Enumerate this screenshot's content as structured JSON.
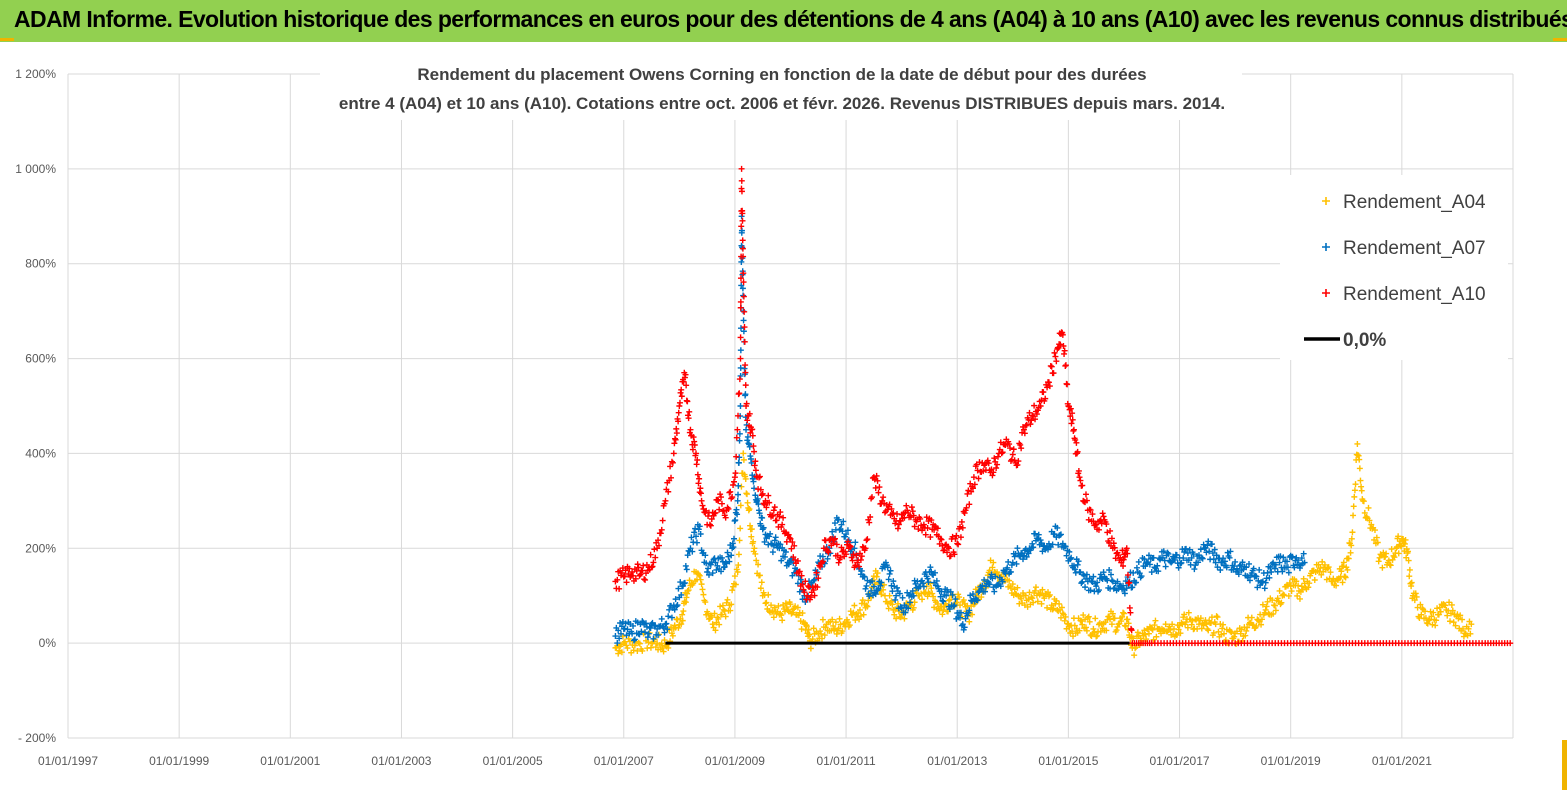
{
  "banner": {
    "text": "ADAM Informe. Evolution historique des performances en euros pour des détentions de 4 ans (A04) à 10 ans (A10) avec les revenus connus distribués"
  },
  "colors": {
    "banner_bg": "#92d050",
    "corner": "#f0b400",
    "A04": "#ffc000",
    "A07": "#0070c0",
    "A10": "#ff0000",
    "zero": "#000000",
    "grid": "#d9d9d9"
  },
  "chart_data": {
    "type": "scatter",
    "title_line1": "Rendement du placement Owens Corning en fonction de la date de début pour des durées",
    "title_line2": "entre 4 (A04) et 10 ans (A10).  Cotations entre oct. 2006 et févr. 2026. Revenus DISTRIBUES  depuis mars. 2014.",
    "xlim": [
      1997.0,
      2023.0
    ],
    "ylim": [
      -200,
      1200
    ],
    "grid": true,
    "legend_position": "top-right",
    "x_ticks": [
      {
        "value": 1997,
        "label": "01/01/1997"
      },
      {
        "value": 1999,
        "label": "01/01/1999"
      },
      {
        "value": 2001,
        "label": "01/01/2001"
      },
      {
        "value": 2003,
        "label": "01/01/2003"
      },
      {
        "value": 2005,
        "label": "01/01/2005"
      },
      {
        "value": 2007,
        "label": "01/01/2007"
      },
      {
        "value": 2009,
        "label": "01/01/2009"
      },
      {
        "value": 2011,
        "label": "01/01/2011"
      },
      {
        "value": 2013,
        "label": "01/01/2013"
      },
      {
        "value": 2015,
        "label": "01/01/2015"
      },
      {
        "value": 2017,
        "label": "01/01/2017"
      },
      {
        "value": 2019,
        "label": "01/01/2019"
      },
      {
        "value": 2021,
        "label": "01/01/2021"
      }
    ],
    "y_ticks": [
      {
        "value": 1200,
        "label": "1 200%"
      },
      {
        "value": 1000,
        "label": "1 000%"
      },
      {
        "value": 800,
        "label": "800%"
      },
      {
        "value": 600,
        "label": "600%"
      },
      {
        "value": 400,
        "label": "400%"
      },
      {
        "value": 200,
        "label": "200%"
      },
      {
        "value": 0,
        "label": "0%"
      },
      {
        "value": -200,
        "label": "- 200%"
      }
    ],
    "series": [
      {
        "name": "Rendement_A04",
        "color": "#ffc000",
        "points": [
          [
            2006.85,
            -10
          ],
          [
            2007.0,
            0
          ],
          [
            2007.2,
            -5
          ],
          [
            2007.4,
            5
          ],
          [
            2007.6,
            0
          ],
          [
            2007.75,
            -5
          ],
          [
            2007.9,
            30
          ],
          [
            2008.05,
            60
          ],
          [
            2008.15,
            110
          ],
          [
            2008.3,
            150
          ],
          [
            2008.45,
            90
          ],
          [
            2008.6,
            40
          ],
          [
            2008.75,
            60
          ],
          [
            2008.9,
            80
          ],
          [
            2009.05,
            150
          ],
          [
            2009.15,
            400
          ],
          [
            2009.25,
            280
          ],
          [
            2009.35,
            200
          ],
          [
            2009.5,
            100
          ],
          [
            2009.65,
            80
          ],
          [
            2009.8,
            60
          ],
          [
            2009.95,
            70
          ],
          [
            2010.1,
            60
          ],
          [
            2010.25,
            40
          ],
          [
            2010.35,
            5
          ],
          [
            2010.5,
            20
          ],
          [
            2010.65,
            40
          ],
          [
            2010.8,
            30
          ],
          [
            2010.95,
            40
          ],
          [
            2011.1,
            60
          ],
          [
            2011.25,
            70
          ],
          [
            2011.4,
            90
          ],
          [
            2011.55,
            140
          ],
          [
            2011.7,
            100
          ],
          [
            2011.85,
            70
          ],
          [
            2012.0,
            60
          ],
          [
            2012.15,
            80
          ],
          [
            2012.3,
            100
          ],
          [
            2012.45,
            120
          ],
          [
            2012.6,
            90
          ],
          [
            2012.75,
            70
          ],
          [
            2012.9,
            100
          ],
          [
            2013.05,
            80
          ],
          [
            2013.2,
            60
          ],
          [
            2013.35,
            100
          ],
          [
            2013.5,
            130
          ],
          [
            2013.65,
            170
          ],
          [
            2013.8,
            140
          ],
          [
            2013.95,
            120
          ],
          [
            2014.1,
            100
          ],
          [
            2014.25,
            90
          ],
          [
            2014.4,
            110
          ],
          [
            2014.55,
            100
          ],
          [
            2014.7,
            80
          ],
          [
            2014.85,
            70
          ],
          [
            2015.0,
            40
          ],
          [
            2015.15,
            30
          ],
          [
            2015.3,
            50
          ],
          [
            2015.45,
            30
          ],
          [
            2015.6,
            40
          ],
          [
            2015.75,
            50
          ],
          [
            2015.9,
            40
          ],
          [
            2016.05,
            50
          ],
          [
            2016.15,
            -10
          ],
          [
            2016.3,
            10
          ],
          [
            2016.45,
            20
          ],
          [
            2016.6,
            30
          ],
          [
            2016.75,
            40
          ],
          [
            2016.9,
            30
          ],
          [
            2017.05,
            40
          ],
          [
            2017.2,
            50
          ],
          [
            2017.35,
            40
          ],
          [
            2017.5,
            30
          ],
          [
            2017.65,
            40
          ],
          [
            2017.8,
            20
          ],
          [
            2017.95,
            10
          ],
          [
            2018.1,
            20
          ],
          [
            2018.25,
            40
          ],
          [
            2018.4,
            50
          ],
          [
            2018.55,
            70
          ],
          [
            2018.7,
            80
          ],
          [
            2018.85,
            100
          ],
          [
            2019.0,
            120
          ],
          [
            2019.15,
            110
          ],
          [
            2019.3,
            130
          ],
          [
            2019.45,
            150
          ],
          [
            2019.6,
            160
          ],
          [
            2019.75,
            130
          ],
          [
            2019.9,
            140
          ],
          [
            2020.0,
            160
          ],
          [
            2020.1,
            220
          ],
          [
            2020.2,
            420
          ],
          [
            2020.3,
            300
          ],
          [
            2020.45,
            250
          ],
          [
            2020.6,
            180
          ],
          [
            2020.75,
            170
          ],
          [
            2020.9,
            200
          ],
          [
            2021.0,
            220
          ],
          [
            2021.1,
            190
          ],
          [
            2021.2,
            100
          ],
          [
            2021.35,
            60
          ],
          [
            2021.5,
            50
          ],
          [
            2021.65,
            60
          ],
          [
            2021.8,
            70
          ],
          [
            2021.95,
            60
          ],
          [
            2022.1,
            30
          ],
          [
            2022.25,
            40
          ]
        ]
      },
      {
        "name": "Rendement_A07",
        "color": "#0070c0",
        "points": [
          [
            2006.85,
            15
          ],
          [
            2007.0,
            30
          ],
          [
            2007.15,
            20
          ],
          [
            2007.3,
            40
          ],
          [
            2007.45,
            20
          ],
          [
            2007.6,
            30
          ],
          [
            2007.75,
            40
          ],
          [
            2007.9,
            80
          ],
          [
            2008.05,
            120
          ],
          [
            2008.2,
            200
          ],
          [
            2008.35,
            240
          ],
          [
            2008.5,
            150
          ],
          [
            2008.65,
            170
          ],
          [
            2008.8,
            160
          ],
          [
            2008.95,
            200
          ],
          [
            2009.05,
            300
          ],
          [
            2009.1,
            500
          ],
          [
            2009.12,
            900
          ],
          [
            2009.15,
            700
          ],
          [
            2009.2,
            450
          ],
          [
            2009.3,
            380
          ],
          [
            2009.4,
            300
          ],
          [
            2009.5,
            240
          ],
          [
            2009.65,
            210
          ],
          [
            2009.8,
            200
          ],
          [
            2009.95,
            170
          ],
          [
            2010.1,
            150
          ],
          [
            2010.25,
            100
          ],
          [
            2010.4,
            120
          ],
          [
            2010.55,
            170
          ],
          [
            2010.7,
            200
          ],
          [
            2010.85,
            260
          ],
          [
            2011.0,
            230
          ],
          [
            2011.15,
            200
          ],
          [
            2011.3,
            140
          ],
          [
            2011.45,
            110
          ],
          [
            2011.6,
            130
          ],
          [
            2011.75,
            160
          ],
          [
            2011.9,
            100
          ],
          [
            2012.05,
            80
          ],
          [
            2012.2,
            110
          ],
          [
            2012.35,
            130
          ],
          [
            2012.5,
            150
          ],
          [
            2012.65,
            120
          ],
          [
            2012.8,
            100
          ],
          [
            2012.95,
            80
          ],
          [
            2013.1,
            40
          ],
          [
            2013.25,
            90
          ],
          [
            2013.4,
            110
          ],
          [
            2013.55,
            130
          ],
          [
            2013.7,
            120
          ],
          [
            2013.85,
            150
          ],
          [
            2014.0,
            170
          ],
          [
            2014.15,
            190
          ],
          [
            2014.3,
            200
          ],
          [
            2014.45,
            220
          ],
          [
            2014.6,
            200
          ],
          [
            2014.75,
            230
          ],
          [
            2014.9,
            210
          ],
          [
            2015.05,
            180
          ],
          [
            2015.2,
            150
          ],
          [
            2015.35,
            130
          ],
          [
            2015.5,
            120
          ],
          [
            2015.65,
            140
          ],
          [
            2015.8,
            130
          ],
          [
            2015.95,
            120
          ],
          [
            2016.1,
            130
          ],
          [
            2016.25,
            150
          ],
          [
            2016.4,
            170
          ],
          [
            2016.55,
            160
          ],
          [
            2016.7,
            180
          ],
          [
            2016.85,
            170
          ],
          [
            2017.0,
            180
          ],
          [
            2017.15,
            190
          ],
          [
            2017.3,
            170
          ],
          [
            2017.45,
            200
          ],
          [
            2017.6,
            190
          ],
          [
            2017.75,
            170
          ],
          [
            2017.9,
            180
          ],
          [
            2018.05,
            150
          ],
          [
            2018.2,
            160
          ],
          [
            2018.35,
            140
          ],
          [
            2018.5,
            130
          ],
          [
            2018.65,
            150
          ],
          [
            2018.8,
            170
          ],
          [
            2018.95,
            160
          ],
          [
            2019.1,
            180
          ],
          [
            2019.25,
            170
          ]
        ]
      },
      {
        "name": "Rendement_A10",
        "color": "#ff0000",
        "points": [
          [
            2006.85,
            130
          ],
          [
            2007.0,
            140
          ],
          [
            2007.15,
            150
          ],
          [
            2007.3,
            145
          ],
          [
            2007.45,
            160
          ],
          [
            2007.6,
            200
          ],
          [
            2007.75,
            300
          ],
          [
            2007.9,
            400
          ],
          [
            2008.0,
            500
          ],
          [
            2008.1,
            560
          ],
          [
            2008.2,
            450
          ],
          [
            2008.3,
            400
          ],
          [
            2008.4,
            300
          ],
          [
            2008.55,
            250
          ],
          [
            2008.7,
            300
          ],
          [
            2008.85,
            280
          ],
          [
            2009.0,
            350
          ],
          [
            2009.1,
            600
          ],
          [
            2009.12,
            1000
          ],
          [
            2009.15,
            780
          ],
          [
            2009.2,
            500
          ],
          [
            2009.3,
            450
          ],
          [
            2009.4,
            350
          ],
          [
            2009.55,
            300
          ],
          [
            2009.7,
            280
          ],
          [
            2009.85,
            250
          ],
          [
            2010.0,
            220
          ],
          [
            2010.15,
            150
          ],
          [
            2010.3,
            100
          ],
          [
            2010.45,
            120
          ],
          [
            2010.6,
            200
          ],
          [
            2010.75,
            220
          ],
          [
            2010.9,
            180
          ],
          [
            2011.05,
            200
          ],
          [
            2011.2,
            170
          ],
          [
            2011.35,
            200
          ],
          [
            2011.5,
            350
          ],
          [
            2011.65,
            300
          ],
          [
            2011.8,
            270
          ],
          [
            2011.95,
            250
          ],
          [
            2012.1,
            280
          ],
          [
            2012.25,
            260
          ],
          [
            2012.4,
            250
          ],
          [
            2012.55,
            240
          ],
          [
            2012.7,
            220
          ],
          [
            2012.85,
            200
          ],
          [
            2013.0,
            210
          ],
          [
            2013.15,
            280
          ],
          [
            2013.3,
            350
          ],
          [
            2013.45,
            380
          ],
          [
            2013.6,
            360
          ],
          [
            2013.75,
            400
          ],
          [
            2013.9,
            420
          ],
          [
            2014.05,
            380
          ],
          [
            2014.2,
            450
          ],
          [
            2014.35,
            480
          ],
          [
            2014.5,
            500
          ],
          [
            2014.65,
            550
          ],
          [
            2014.8,
            620
          ],
          [
            2014.9,
            650
          ],
          [
            2015.0,
            500
          ],
          [
            2015.1,
            450
          ],
          [
            2015.2,
            350
          ],
          [
            2015.35,
            280
          ],
          [
            2015.5,
            250
          ],
          [
            2015.65,
            260
          ],
          [
            2015.8,
            200
          ],
          [
            2015.95,
            170
          ],
          [
            2016.05,
            200
          ],
          [
            2016.15,
            0
          ],
          [
            2016.5,
            0
          ],
          [
            2017.0,
            0
          ],
          [
            2017.5,
            0
          ],
          [
            2018.0,
            0
          ],
          [
            2018.5,
            0
          ],
          [
            2019.0,
            0
          ],
          [
            2019.5,
            0
          ],
          [
            2020.0,
            0
          ],
          [
            2020.5,
            0
          ],
          [
            2021.0,
            0
          ],
          [
            2021.5,
            0
          ],
          [
            2022.0,
            0
          ],
          [
            2022.5,
            0
          ],
          [
            2022.95,
            0
          ]
        ]
      },
      {
        "name": "0,0%",
        "color": "#000000",
        "line": [
          [
            2007.75,
            0
          ],
          [
            2016.1,
            0
          ]
        ]
      }
    ]
  }
}
